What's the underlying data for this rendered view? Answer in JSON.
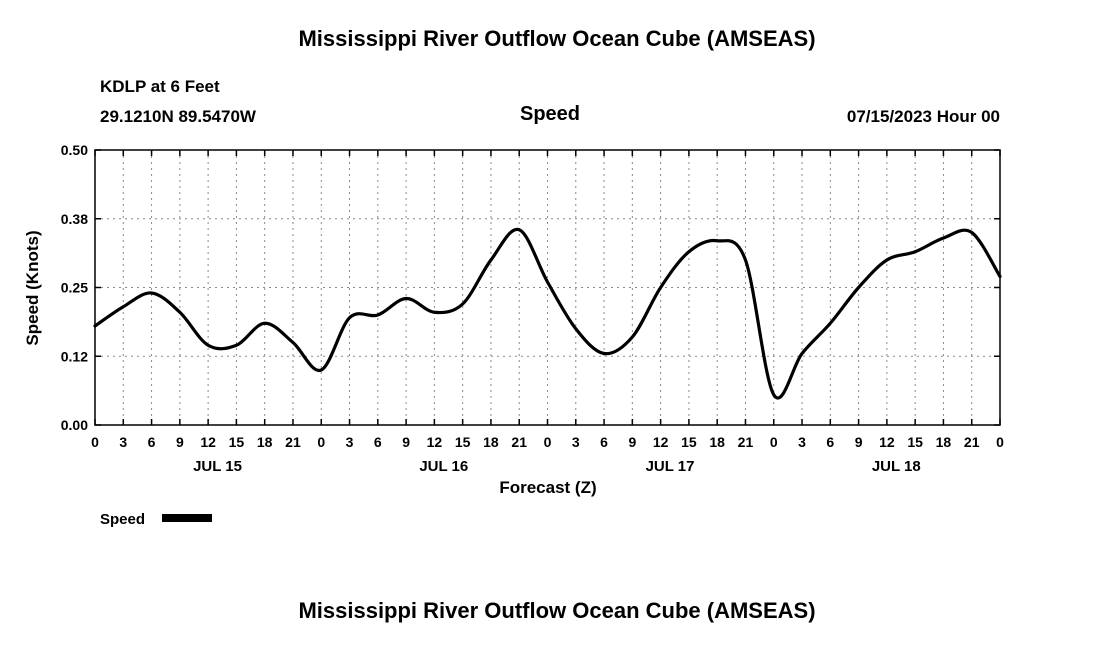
{
  "page": {
    "top_title": "Mississippi River Outflow Ocean Cube (AMSEAS)",
    "bottom_title": "Mississippi River Outflow Ocean Cube (AMSEAS)"
  },
  "header": {
    "station": "KDLP at 6 Feet",
    "coordinates": "29.1210N  89.5470W",
    "run_time": "07/15/2023 Hour 00"
  },
  "chart_data": {
    "type": "line",
    "title": "Speed",
    "xlabel": "Forecast (Z)",
    "ylabel": "Speed (Knots)",
    "ylim": [
      0,
      0.5
    ],
    "ytick_values": [
      0,
      0.125,
      0.25,
      0.375,
      0.5
    ],
    "ytick_labels": [
      "0.00",
      "0.12",
      "0.25",
      "0.38",
      "0.50"
    ],
    "xlim": [
      0,
      96
    ],
    "xtick_step_hours": 3,
    "xtick_cycle_labels": [
      "0",
      "3",
      "6",
      "9",
      "12",
      "15",
      "18",
      "21"
    ],
    "day_labels": [
      "JUL 15",
      "JUL 16",
      "JUL 17",
      "JUL 18"
    ],
    "grid": "dashed",
    "line_color": "#000000",
    "legend": [
      {
        "label": "Speed",
        "color": "#000000"
      }
    ],
    "series": [
      {
        "name": "Speed",
        "x": [
          0,
          3,
          6,
          9,
          12,
          15,
          18,
          21,
          24,
          27,
          30,
          33,
          36,
          39,
          42,
          45,
          48,
          51,
          54,
          57,
          60,
          63,
          66,
          69,
          72,
          75,
          78,
          81,
          84,
          87,
          90,
          93,
          96
        ],
        "values": [
          0.18,
          0.215,
          0.24,
          0.205,
          0.145,
          0.145,
          0.185,
          0.15,
          0.1,
          0.195,
          0.2,
          0.23,
          0.205,
          0.22,
          0.3,
          0.355,
          0.26,
          0.175,
          0.13,
          0.16,
          0.25,
          0.315,
          0.335,
          0.3,
          0.055,
          0.13,
          0.185,
          0.25,
          0.3,
          0.315,
          0.34,
          0.35,
          0.27
        ]
      }
    ]
  }
}
